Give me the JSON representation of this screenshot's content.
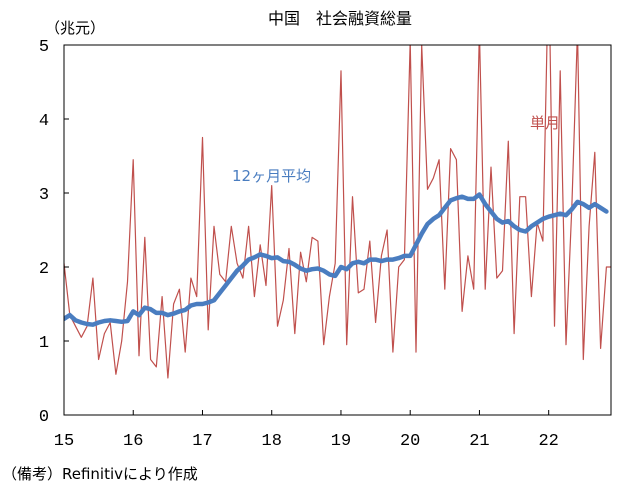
{
  "chart_data": {
    "type": "line",
    "title": "中国　社会融資総量",
    "ylabel": "（兆元）",
    "ylim": [
      0,
      5
    ],
    "yticks": [
      "0",
      "1",
      "2",
      "3",
      "4",
      "5"
    ],
    "x_ticks": [
      "15",
      "16",
      "17",
      "18",
      "19",
      "20",
      "21",
      "22"
    ],
    "x_range": [
      15,
      22.9
    ],
    "grid": false,
    "note": "（備考）Refinitivにより作成",
    "series": [
      {
        "name": "単月",
        "color": "#c0504d",
        "x": [
          15.0,
          15.0833,
          15.1667,
          15.25,
          15.3333,
          15.4167,
          15.5,
          15.5833,
          15.6667,
          15.75,
          15.8333,
          15.9167,
          16.0,
          16.0833,
          16.1667,
          16.25,
          16.3333,
          16.4167,
          16.5,
          16.5833,
          16.6667,
          16.75,
          16.8333,
          16.9167,
          17.0,
          17.0833,
          17.1667,
          17.25,
          17.3333,
          17.4167,
          17.5,
          17.5833,
          17.6667,
          17.75,
          17.8333,
          17.9167,
          18.0,
          18.0833,
          18.1667,
          18.25,
          18.3333,
          18.4167,
          18.5,
          18.5833,
          18.6667,
          18.75,
          18.8333,
          18.9167,
          19.0,
          19.0833,
          19.1667,
          19.25,
          19.3333,
          19.4167,
          19.5,
          19.5833,
          19.6667,
          19.75,
          19.8333,
          19.9167,
          20.0,
          20.0833,
          20.1667,
          20.25,
          20.3333,
          20.4167,
          20.5,
          20.5833,
          20.6667,
          20.75,
          20.8333,
          20.9167,
          21.0,
          21.0833,
          21.1667,
          21.25,
          21.3333,
          21.4167,
          21.5,
          21.5833,
          21.6667,
          21.75,
          21.8333,
          21.9167,
          22.0,
          22.0833,
          22.1667,
          22.25,
          22.3333,
          22.4167,
          22.5,
          22.5833,
          22.6667,
          22.75,
          22.8333,
          22.9167
        ],
        "values": [
          2.05,
          1.35,
          1.2,
          1.05,
          1.2,
          1.85,
          0.75,
          1.1,
          1.25,
          0.55,
          1.0,
          1.8,
          3.45,
          0.8,
          2.4,
          0.75,
          0.65,
          1.6,
          0.5,
          1.5,
          1.7,
          0.85,
          1.85,
          1.6,
          3.75,
          1.15,
          2.55,
          1.9,
          1.8,
          2.55,
          2.05,
          1.85,
          2.55,
          1.6,
          2.3,
          1.75,
          3.1,
          1.2,
          1.55,
          2.25,
          1.1,
          2.2,
          1.8,
          2.4,
          2.35,
          0.95,
          1.6,
          2.05,
          4.65,
          0.95,
          2.95,
          1.65,
          1.7,
          2.35,
          1.25,
          2.15,
          2.5,
          0.85,
          2.0,
          2.1,
          5.05,
          0.85,
          5.0,
          3.05,
          3.2,
          3.45,
          1.7,
          3.6,
          3.45,
          1.4,
          2.15,
          1.7,
          5.2,
          1.7,
          3.35,
          1.85,
          1.95,
          3.7,
          1.1,
          2.95,
          2.95,
          1.6,
          2.6,
          2.35,
          6.15,
          1.2,
          4.65,
          0.95,
          2.8,
          5.2,
          0.75,
          2.55,
          3.55,
          0.9,
          2.0,
          2.0
        ]
      },
      {
        "name": "12ヶ月平均",
        "color": "#4a7dc0",
        "x": [
          15.0,
          15.0833,
          15.1667,
          15.25,
          15.3333,
          15.4167,
          15.5,
          15.5833,
          15.6667,
          15.75,
          15.8333,
          15.9167,
          16.0,
          16.0833,
          16.1667,
          16.25,
          16.3333,
          16.4167,
          16.5,
          16.5833,
          16.6667,
          16.75,
          16.8333,
          16.9167,
          17.0,
          17.0833,
          17.1667,
          17.25,
          17.3333,
          17.4167,
          17.5,
          17.5833,
          17.6667,
          17.75,
          17.8333,
          17.9167,
          18.0,
          18.0833,
          18.1667,
          18.25,
          18.3333,
          18.4167,
          18.5,
          18.5833,
          18.6667,
          18.75,
          18.8333,
          18.9167,
          19.0,
          19.0833,
          19.1667,
          19.25,
          19.3333,
          19.4167,
          19.5,
          19.5833,
          19.6667,
          19.75,
          19.8333,
          19.9167,
          20.0,
          20.0833,
          20.1667,
          20.25,
          20.3333,
          20.4167,
          20.5,
          20.5833,
          20.6667,
          20.75,
          20.8333,
          20.9167,
          21.0,
          21.0833,
          21.1667,
          21.25,
          21.3333,
          21.4167,
          21.5,
          21.5833,
          21.6667,
          21.75,
          21.8333,
          21.9167,
          22.0,
          22.0833,
          22.1667,
          22.25,
          22.3333,
          22.4167,
          22.5,
          22.5833,
          22.6667,
          22.75,
          22.8333
        ],
        "values": [
          1.3,
          1.35,
          1.28,
          1.25,
          1.23,
          1.22,
          1.25,
          1.27,
          1.28,
          1.27,
          1.26,
          1.27,
          1.4,
          1.35,
          1.45,
          1.43,
          1.38,
          1.38,
          1.35,
          1.37,
          1.4,
          1.42,
          1.48,
          1.5,
          1.5,
          1.52,
          1.55,
          1.65,
          1.75,
          1.85,
          1.95,
          2.02,
          2.1,
          2.13,
          2.17,
          2.15,
          2.12,
          2.13,
          2.08,
          2.07,
          2.03,
          1.98,
          1.95,
          1.97,
          1.98,
          1.95,
          1.9,
          1.88,
          2.0,
          1.97,
          2.05,
          2.07,
          2.05,
          2.1,
          2.1,
          2.08,
          2.1,
          2.1,
          2.12,
          2.15,
          2.15,
          2.3,
          2.45,
          2.58,
          2.65,
          2.7,
          2.8,
          2.9,
          2.93,
          2.95,
          2.92,
          2.92,
          2.98,
          2.85,
          2.75,
          2.65,
          2.6,
          2.62,
          2.55,
          2.5,
          2.48,
          2.55,
          2.6,
          2.65,
          2.68,
          2.7,
          2.72,
          2.7,
          2.78,
          2.88,
          2.85,
          2.8,
          2.85,
          2.8,
          2.75
        ]
      }
    ],
    "annotations": [
      {
        "text": "12ヶ月平均",
        "series": "12ヶ月平均"
      },
      {
        "text": "単月",
        "series": "単月"
      }
    ]
  }
}
